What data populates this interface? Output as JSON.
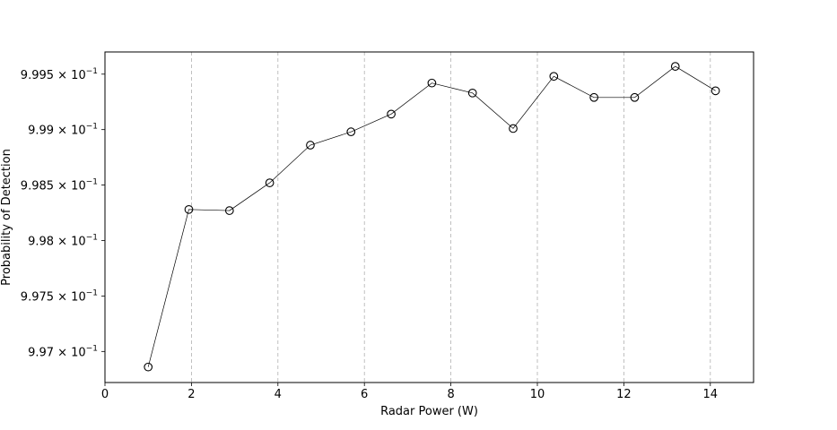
{
  "chart_data": {
    "type": "line",
    "title": "",
    "xlabel": "Radar Power (W)",
    "ylabel": "Probability of Detection",
    "xlim": [
      0,
      15
    ],
    "ylim": [
      0.99672,
      0.9997
    ],
    "grid": "x-axis vertical dashed",
    "x_ticks": [
      {
        "value": 0,
        "label": "0"
      },
      {
        "value": 2,
        "label": "2"
      },
      {
        "value": 4,
        "label": "4"
      },
      {
        "value": 6,
        "label": "6"
      },
      {
        "value": 8,
        "label": "8"
      },
      {
        "value": 10,
        "label": "10"
      },
      {
        "value": 12,
        "label": "12"
      },
      {
        "value": 14,
        "label": "14"
      }
    ],
    "y_ticks": [
      {
        "value": 0.997,
        "mantissa": "9.97",
        "exponent": "−1"
      },
      {
        "value": 0.9975,
        "mantissa": "9.975",
        "exponent": "−1"
      },
      {
        "value": 0.998,
        "mantissa": "9.98",
        "exponent": "−1"
      },
      {
        "value": 0.9985,
        "mantissa": "9.985",
        "exponent": "−1"
      },
      {
        "value": 0.999,
        "mantissa": "9.99",
        "exponent": "−1"
      },
      {
        "value": 0.9995,
        "mantissa": "9.995",
        "exponent": "−1"
      }
    ],
    "series": [
      {
        "x": [
          1.0,
          1.94,
          2.88,
          3.81,
          4.75,
          5.69,
          6.62,
          7.56,
          8.5,
          9.44,
          10.38,
          11.31,
          12.25,
          13.19,
          14.12
        ],
        "y": [
          0.99686,
          0.99828,
          0.99827,
          0.99852,
          0.99886,
          0.99898,
          0.99914,
          0.99942,
          0.99933,
          0.99901,
          0.99948,
          0.99929,
          0.99929,
          0.99957,
          0.99935
        ],
        "color": "#000000",
        "marker": "open-circle"
      }
    ]
  }
}
